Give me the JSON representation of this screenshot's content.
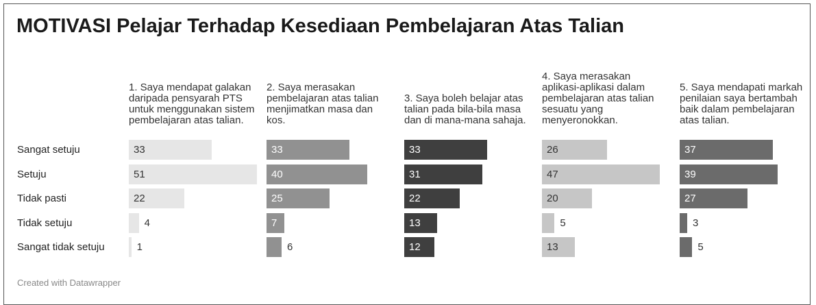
{
  "chart_data": {
    "type": "bar",
    "title": "MOTIVASI Pelajar Terhadap Kesediaan Pembelajaran Atas Talian",
    "categories": [
      "Sangat setuju",
      "Setuju",
      "Tidak pasti",
      "Tidak setuju",
      "Sangat tidak setuju"
    ],
    "series": [
      {
        "name": "1. Saya mendapat galakan daripada pensyarah PTS untuk menggunakan sistem pembelajaran atas talian.",
        "color": "#e6e6e6",
        "values": [
          33,
          51,
          22,
          4,
          1
        ]
      },
      {
        "name": "2. Saya merasakan pembelajaran atas talian menjimatkan masa dan kos.",
        "color": "#919191",
        "values": [
          33,
          40,
          25,
          7,
          6
        ]
      },
      {
        "name": "3. Saya boleh belajar atas talian pada bila-bila masa dan di mana-mana sahaja.",
        "color": "#3f3f3f",
        "values": [
          33,
          31,
          22,
          13,
          12
        ]
      },
      {
        "name": "4. Saya merasakan aplikasi-aplikasi dalam pembelajaran atas talian sesuatu yang menyeronokkan.",
        "color": "#c6c6c6",
        "values": [
          26,
          47,
          20,
          5,
          13
        ]
      },
      {
        "name": "5. Saya mendapati markah penilaian saya bertambah baik dalam pembelajaran atas talian.",
        "color": "#6b6b6b",
        "values": [
          37,
          39,
          27,
          3,
          5
        ]
      }
    ],
    "xlim": [
      0,
      51
    ],
    "footer": "Created with Datawrapper"
  }
}
